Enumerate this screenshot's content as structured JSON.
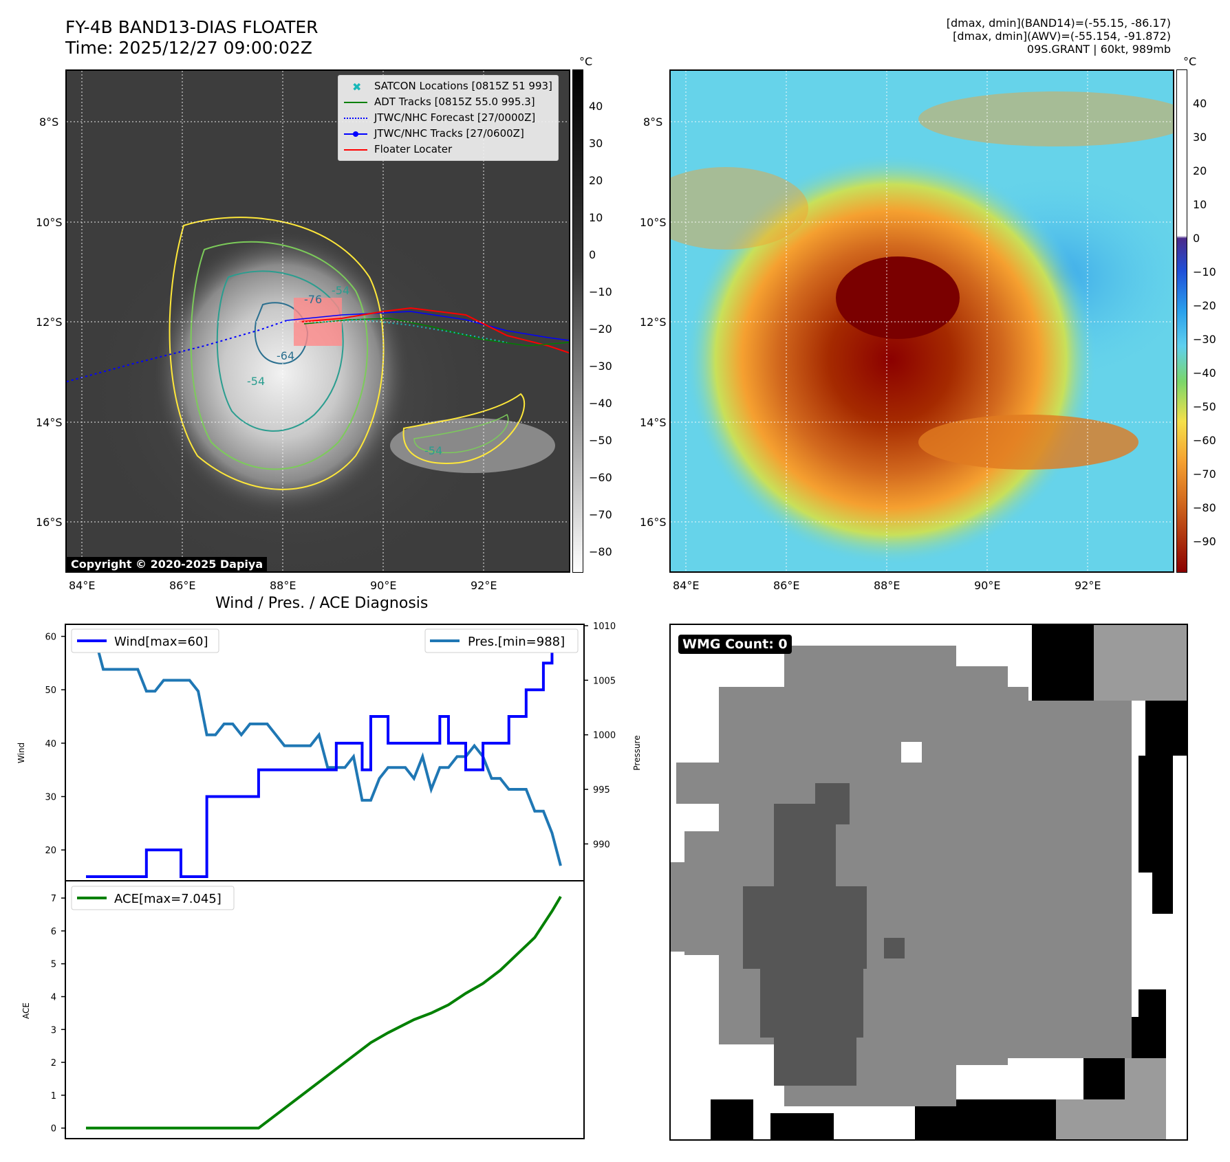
{
  "top_left": {
    "title_line1": "FY-4B BAND13-DIAS FLOATER",
    "title_line2": "Time: 2025/12/27 09:00:02Z",
    "copyright": "Copyright © 2020-2025 Dapiya",
    "colorbar_unit": "°C",
    "colorbar_ticks": [
      "40",
      "30",
      "20",
      "10",
      "0",
      "−10",
      "−20",
      "−30",
      "−40",
      "−50",
      "−60",
      "−70",
      "−80"
    ],
    "lat_ticks": [
      "8°S",
      "10°S",
      "12°S",
      "14°S",
      "16°S"
    ],
    "lon_ticks": [
      "84°E",
      "86°E",
      "88°E",
      "90°E",
      "92°E"
    ],
    "contour_labels": [
      "-54",
      "-64",
      "-54",
      "-54",
      "-76"
    ],
    "legend": [
      {
        "label": "SATCON Locations [0815Z 51 993]",
        "color": "#17b8b8"
      },
      {
        "label": "ADT Tracks [0815Z 55.0 995.3]",
        "color": "#008000"
      },
      {
        "label": "JTWC/NHC Forecast [27/0000Z]",
        "color": "#0000ff"
      },
      {
        "label": "JTWC/NHC Tracks [27/0600Z]",
        "color": "#0000ff"
      },
      {
        "label": "Floater Locater",
        "color": "#ff0000"
      }
    ]
  },
  "top_right": {
    "info_line1": "[dmax, dmin](BAND14)=(-55.15, -86.17)",
    "info_line2": "[dmax, dmin](AWV)=(-55.154, -91.872)",
    "info_line3": "09S.GRANT | 60kt, 989mb",
    "colorbar_unit": "°C",
    "colorbar_ticks": [
      "40",
      "30",
      "20",
      "10",
      "0",
      "−10",
      "−20",
      "−30",
      "−40",
      "−50",
      "−60",
      "−70",
      "−80",
      "−90"
    ],
    "lat_ticks": [
      "8°S",
      "10°S",
      "12°S",
      "14°S",
      "16°S"
    ],
    "lon_ticks": [
      "84°E",
      "86°E",
      "88°E",
      "90°E",
      "92°E"
    ]
  },
  "bottom_left": {
    "title": "Wind / Pres. / ACE Diagnosis",
    "wind_axis_label": "Wind",
    "pressure_axis_label": "Pressure",
    "ace_axis_label": "ACE",
    "wind_legend": "Wind[max=60]",
    "pres_legend": "Pres.[min=988]",
    "ace_legend": "ACE[max=7.045]",
    "wind_color": "#0000ff",
    "pres_color": "#1f77b4",
    "ace_color": "#008000"
  },
  "bottom_right": {
    "badge": "WMG Count: 0"
  },
  "chart_data": [
    {
      "type": "line",
      "name": "wind",
      "ylim": [
        15,
        62
      ],
      "yticks": [
        20,
        30,
        40,
        50,
        60
      ],
      "x": [
        0,
        1,
        2,
        3,
        4,
        5,
        6,
        7,
        8,
        9,
        10,
        11,
        12,
        13,
        14,
        15,
        16,
        17,
        18,
        19,
        20,
        21,
        22,
        23,
        24,
        25,
        26,
        27,
        28,
        29,
        30,
        31,
        32,
        33,
        34,
        35,
        36,
        37,
        38,
        39,
        40,
        41,
        42,
        43,
        44,
        45,
        46,
        47,
        48,
        49,
        50,
        51,
        52,
        53,
        54
      ],
      "values": [
        15,
        15,
        15,
        15,
        15,
        15,
        15,
        20,
        20,
        20,
        20,
        15,
        15,
        15,
        30,
        30,
        30,
        30,
        30,
        30,
        35,
        35,
        35,
        35,
        35,
        35,
        35,
        35,
        35,
        40,
        40,
        40,
        35,
        45,
        45,
        40,
        40,
        40,
        40,
        40,
        40,
        45,
        40,
        40,
        35,
        35,
        40,
        40,
        40,
        45,
        45,
        50,
        50,
        55,
        60
      ]
    },
    {
      "type": "line",
      "name": "pressure",
      "ylim": [
        987,
        1010
      ],
      "yticks": [
        990,
        995,
        1000,
        1005,
        1010
      ],
      "x": [
        0,
        1,
        2,
        3,
        4,
        5,
        6,
        7,
        8,
        9,
        10,
        11,
        12,
        13,
        14,
        15,
        16,
        17,
        18,
        19,
        20,
        21,
        22,
        23,
        24,
        25,
        26,
        27,
        28,
        29,
        30,
        31,
        32,
        33,
        34,
        35,
        36,
        37,
        38,
        39,
        40,
        41,
        42,
        43,
        44,
        45,
        46,
        47,
        48,
        49,
        50,
        51,
        52,
        53,
        54,
        55
      ],
      "values": [
        1009,
        1009,
        1006,
        1006,
        1006,
        1006,
        1006,
        1004,
        1004,
        1005,
        1005,
        1005,
        1005,
        1004,
        1000,
        1000,
        1001,
        1001,
        1000,
        1001,
        1001,
        1001,
        1000,
        999,
        999,
        999,
        999,
        1000,
        997,
        997,
        997,
        998,
        994,
        994,
        996,
        997,
        997,
        997,
        996,
        998,
        995,
        997,
        997,
        998,
        998,
        999,
        998,
        996,
        996,
        995,
        995,
        995,
        993,
        993,
        991,
        988
      ]
    },
    {
      "type": "line",
      "name": "ace",
      "ylim": [
        -0.3,
        7.4
      ],
      "yticks": [
        0,
        1,
        2,
        3,
        4,
        5,
        6,
        7
      ],
      "x": [
        0,
        5,
        10,
        15,
        20,
        22,
        25,
        28,
        30,
        33,
        35,
        38,
        40,
        42,
        44,
        46,
        48,
        50,
        52,
        54,
        55
      ],
      "values": [
        0,
        0,
        0,
        0,
        0,
        0.4,
        1.0,
        1.6,
        2.0,
        2.6,
        2.9,
        3.3,
        3.5,
        3.75,
        4.1,
        4.4,
        4.8,
        5.3,
        5.8,
        6.6,
        7.045
      ]
    }
  ]
}
